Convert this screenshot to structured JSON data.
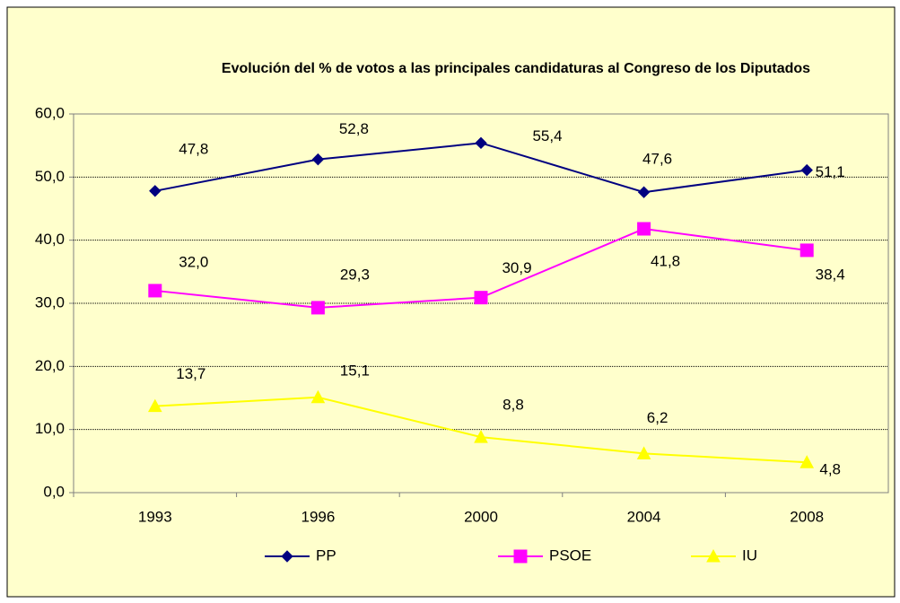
{
  "chart_data": {
    "type": "line",
    "title": "Evolución del % de votos a las principales candidaturas al Congreso de los Diputados",
    "categories": [
      "1993",
      "1996",
      "2000",
      "2004",
      "2008"
    ],
    "series": [
      {
        "name": "PP",
        "color": "#000080",
        "marker": "diamond",
        "values": [
          47.8,
          52.8,
          55.4,
          47.6,
          51.1
        ],
        "value_labels": [
          "47,8",
          "52,8",
          "55,4",
          "47,6",
          "51,1"
        ]
      },
      {
        "name": "PSOE",
        "color": "#FF00FF",
        "marker": "square",
        "values": [
          32.0,
          29.3,
          30.9,
          41.8,
          38.4
        ],
        "value_labels": [
          "32,0",
          "29,3",
          "30,9",
          "41,8",
          "38,4"
        ]
      },
      {
        "name": "IU",
        "color": "#FFFF00",
        "marker": "triangle",
        "values": [
          13.7,
          15.1,
          8.8,
          6.2,
          4.8
        ],
        "value_labels": [
          "13,7",
          "15,1",
          "8,8",
          "6,2",
          "4,8"
        ]
      }
    ],
    "ylim": [
      0,
      60
    ],
    "yticks": [
      {
        "value": 0,
        "label": "0,0"
      },
      {
        "value": 10,
        "label": "10,0"
      },
      {
        "value": 20,
        "label": "20,0"
      },
      {
        "value": 30,
        "label": "30,0"
      },
      {
        "value": 40,
        "label": "40,0"
      },
      {
        "value": 50,
        "label": "50,0"
      },
      {
        "value": 60,
        "label": "60,0"
      }
    ],
    "grid": true,
    "legend": "bottom"
  }
}
